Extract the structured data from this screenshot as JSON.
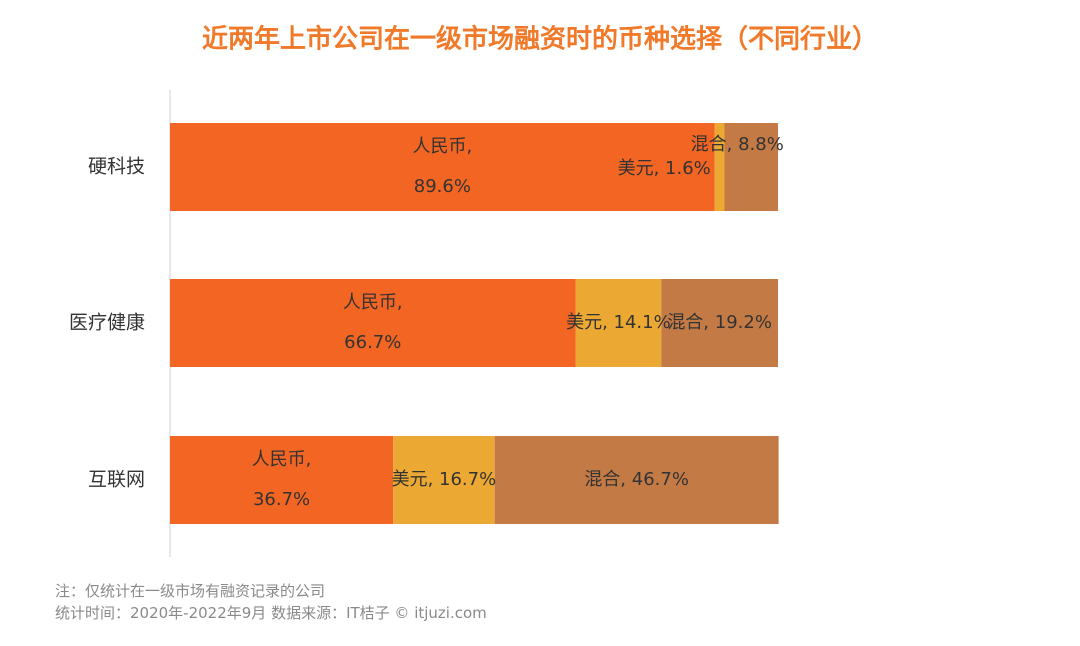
{
  "chart_data": {
    "type": "stacked_bar_horizontal",
    "title": "近两年上市公司在一级市场融资时的币种选择（不同行业）",
    "categories": [
      "硬科技",
      "医疗健康",
      "互联网"
    ],
    "series": [
      {
        "name": "人民币",
        "color": "#f26522",
        "values": [
          89.6,
          66.7,
          36.7
        ],
        "value_labels": [
          "人民币, 89.6%",
          "人民币, 66.7%",
          "人民币, 36.7%"
        ]
      },
      {
        "name": "美元",
        "color": "#eba832",
        "values": [
          1.6,
          14.1,
          16.7
        ],
        "value_labels": [
          "美元, 1.6%",
          "美元, 14.1%",
          "美元, 16.7%"
        ]
      },
      {
        "name": "混合",
        "color": "#c47a45",
        "values": [
          8.8,
          19.2,
          46.7
        ],
        "value_labels": [
          "混合, 8.8%",
          "混合, 19.2%",
          "混合, 46.7%"
        ]
      }
    ],
    "xlim": [
      0,
      100
    ],
    "notes": [
      "注：仅统计在一级市场有融资记录的公司",
      "统计时间：2020年-2022年9月   数据来源：IT桔子 © itjuzi.com"
    ]
  }
}
